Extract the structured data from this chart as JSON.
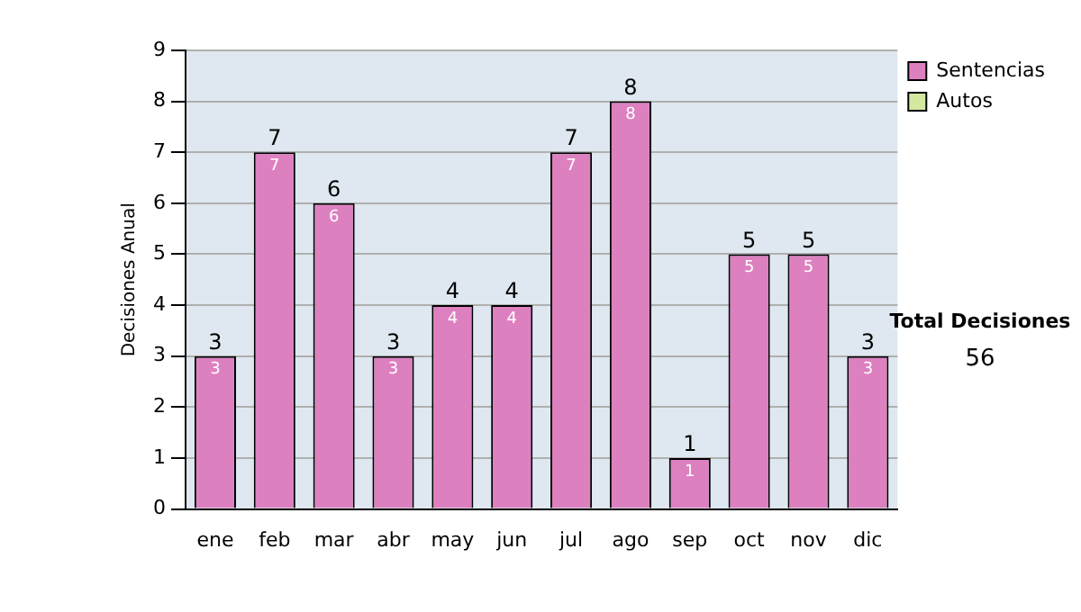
{
  "chart_data": {
    "type": "bar",
    "stacked": true,
    "ylabel": "Decisiones Anual",
    "categories": [
      "ene",
      "feb",
      "mar",
      "abr",
      "may",
      "jun",
      "jul",
      "ago",
      "sep",
      "oct",
      "nov",
      "dic"
    ],
    "series": [
      {
        "name": "Sentencias",
        "color": "#dd80c0",
        "values": [
          3,
          7,
          6,
          3,
          4,
          4,
          7,
          8,
          1,
          5,
          5,
          3
        ],
        "value_labels": [
          "3",
          "7",
          "6",
          "3",
          "4",
          "4",
          "7",
          "8",
          "1",
          "5",
          "5",
          "3"
        ]
      },
      {
        "name": "Autos",
        "color": "#d4e8a0",
        "values": [
          0,
          0,
          0,
          0,
          0,
          0,
          0,
          0,
          0,
          0,
          0,
          0
        ]
      }
    ],
    "totals": [
      "3",
      "7",
      "6",
      "3",
      "4",
      "4",
      "7",
      "8",
      "1",
      "5",
      "5",
      "3"
    ],
    "ylim": [
      0,
      9
    ],
    "yticks": [
      0,
      1,
      2,
      3,
      4,
      5,
      6,
      7,
      8,
      9
    ],
    "grid": "y",
    "legend": "right",
    "annotations": [
      "Total Decisiones",
      "56"
    ]
  }
}
